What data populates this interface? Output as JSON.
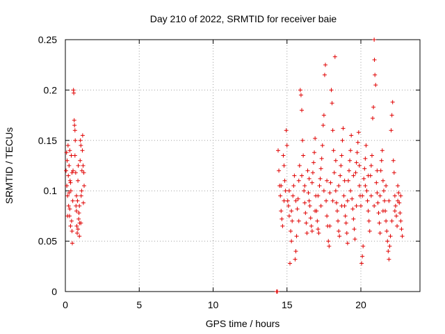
{
  "chart_data": {
    "type": "scatter",
    "title": "Day 210 of 2022, SRMTID for receiver baie",
    "xlabel": "GPS time / hours",
    "ylabel": "SRMTID / TECUs",
    "xlim": [
      0,
      24
    ],
    "ylim": [
      0,
      0.25
    ],
    "x_ticks": [
      0,
      5,
      10,
      15,
      20
    ],
    "x_tick_labels": [
      "0",
      "5",
      "10",
      "15",
      "20"
    ],
    "y_ticks": [
      0,
      0.05,
      0.1,
      0.15,
      0.2,
      0.25
    ],
    "y_tick_labels": [
      "0",
      "0.05",
      "0.1",
      "0.15",
      "0.2",
      "0.25"
    ],
    "grid": true,
    "marker": "plus",
    "color": "#e00000",
    "series": [
      {
        "name": "SRMTID",
        "points": [
          [
            0.05,
            0.12
          ],
          [
            0.1,
            0.105
          ],
          [
            0.12,
            0.13
          ],
          [
            0.15,
            0.095
          ],
          [
            0.18,
            0.145
          ],
          [
            0.2,
            0.115
          ],
          [
            0.22,
            0.085
          ],
          [
            0.25,
            0.125
          ],
          [
            0.28,
            0.075
          ],
          [
            0.3,
            0.14
          ],
          [
            0.32,
            0.11
          ],
          [
            0.35,
            0.065
          ],
          [
            0.37,
            0.1
          ],
          [
            0.4,
            0.135
          ],
          [
            0.42,
            0.07
          ],
          [
            0.45,
            0.06
          ],
          [
            0.47,
            0.048
          ],
          [
            0.5,
            0.09
          ],
          [
            0.52,
            0.12
          ],
          [
            0.55,
            0.2
          ],
          [
            0.57,
            0.197
          ],
          [
            0.6,
            0.17
          ],
          [
            0.62,
            0.165
          ],
          [
            0.65,
            0.16
          ],
          [
            0.67,
            0.15
          ],
          [
            0.7,
            0.118
          ],
          [
            0.72,
            0.085
          ],
          [
            0.75,
            0.08
          ],
          [
            0.77,
            0.065
          ],
          [
            0.8,
            0.058
          ],
          [
            0.82,
            0.09
          ],
          [
            0.85,
            0.11
          ],
          [
            0.87,
            0.125
          ],
          [
            0.9,
            0.072
          ],
          [
            0.92,
            0.078
          ],
          [
            0.95,
            0.085
          ],
          [
            0.97,
            0.068
          ],
          [
            1.0,
            0.13
          ],
          [
            1.02,
            0.15
          ],
          [
            1.05,
            0.145
          ],
          [
            1.07,
            0.095
          ],
          [
            1.1,
            0.1
          ],
          [
            1.12,
            0.12
          ],
          [
            1.15,
            0.14
          ],
          [
            1.17,
            0.155
          ],
          [
            1.2,
            0.125
          ],
          [
            1.22,
            0.088
          ],
          [
            1.25,
            0.118
          ],
          [
            1.27,
            0.105
          ],
          [
            0.15,
            0.075
          ],
          [
            0.25,
            0.098
          ],
          [
            0.35,
            0.108
          ],
          [
            0.45,
            0.118
          ],
          [
            0.65,
            0.135
          ],
          [
            0.75,
            0.095
          ],
          [
            0.85,
            0.062
          ],
          [
            0.95,
            0.055
          ],
          [
            1.05,
            0.068
          ],
          [
            0.08,
            0.138
          ],
          [
            0.3,
            0.082
          ],
          [
            14.3,
            0.0
          ],
          [
            14.35,
            0.0
          ],
          [
            14.4,
            0.14
          ],
          [
            14.45,
            0.12
          ],
          [
            14.5,
            0.105
          ],
          [
            14.55,
            0.095
          ],
          [
            14.6,
            0.08
          ],
          [
            14.65,
            0.072
          ],
          [
            14.7,
            0.065
          ],
          [
            14.75,
            0.135
          ],
          [
            14.8,
            0.125
          ],
          [
            14.85,
            0.11
          ],
          [
            14.9,
            0.1
          ],
          [
            14.95,
            0.16
          ],
          [
            15.0,
            0.145
          ],
          [
            15.05,
            0.09
          ],
          [
            15.1,
            0.085
          ],
          [
            15.15,
            0.075
          ],
          [
            15.2,
            0.028
          ],
          [
            15.25,
            0.06
          ],
          [
            15.3,
            0.05
          ],
          [
            15.35,
            0.07
          ],
          [
            15.4,
            0.095
          ],
          [
            15.45,
            0.105
          ],
          [
            15.5,
            0.115
          ],
          [
            15.55,
            0.032
          ],
          [
            15.6,
            0.04
          ],
          [
            15.65,
            0.055
          ],
          [
            15.7,
            0.082
          ],
          [
            15.75,
            0.092
          ],
          [
            15.8,
            0.11
          ],
          [
            15.85,
            0.125
          ],
          [
            15.9,
            0.2
          ],
          [
            15.95,
            0.195
          ],
          [
            16.0,
            0.18
          ],
          [
            16.05,
            0.15
          ],
          [
            16.1,
            0.135
          ],
          [
            16.15,
            0.1
          ],
          [
            16.2,
            0.088
          ],
          [
            16.25,
            0.078
          ],
          [
            16.3,
            0.068
          ],
          [
            16.35,
            0.058
          ],
          [
            16.4,
            0.12
          ],
          [
            16.45,
            0.098
          ],
          [
            16.5,
            0.09
          ],
          [
            16.55,
            0.085
          ],
          [
            16.6,
            0.073
          ],
          [
            16.65,
            0.065
          ],
          [
            16.7,
            0.108
          ],
          [
            16.75,
            0.118
          ],
          [
            16.8,
            0.128
          ],
          [
            16.85,
            0.138
          ],
          [
            16.9,
            0.152
          ],
          [
            16.95,
            0.095
          ],
          [
            17.0,
            0.08
          ],
          [
            17.05,
            0.07
          ],
          [
            17.1,
            0.062
          ],
          [
            17.15,
            0.058
          ],
          [
            17.2,
            0.105
          ],
          [
            17.25,
            0.112
          ],
          [
            17.3,
            0.122
          ],
          [
            17.35,
            0.132
          ],
          [
            17.4,
            0.145
          ],
          [
            17.45,
            0.165
          ],
          [
            17.5,
            0.175
          ],
          [
            17.55,
            0.215
          ],
          [
            17.6,
            0.225
          ],
          [
            17.65,
            0.09
          ],
          [
            17.7,
            0.075
          ],
          [
            17.75,
            0.065
          ],
          [
            17.8,
            0.05
          ],
          [
            17.85,
            0.045
          ],
          [
            17.9,
            0.098
          ],
          [
            17.95,
            0.108
          ],
          [
            18.0,
            0.2
          ],
          [
            18.05,
            0.187
          ],
          [
            18.1,
            0.16
          ],
          [
            18.15,
            0.14
          ],
          [
            18.2,
            0.118
          ],
          [
            18.25,
            0.233
          ],
          [
            18.3,
            0.1
          ],
          [
            18.35,
            0.088
          ],
          [
            18.4,
            0.08
          ],
          [
            18.45,
            0.07
          ],
          [
            18.5,
            0.06
          ],
          [
            18.55,
            0.055
          ],
          [
            18.6,
            0.115
          ],
          [
            18.65,
            0.125
          ],
          [
            18.7,
            0.135
          ],
          [
            18.75,
            0.15
          ],
          [
            18.8,
            0.162
          ],
          [
            18.85,
            0.095
          ],
          [
            18.9,
            0.085
          ],
          [
            18.95,
            0.075
          ],
          [
            19.0,
            0.068
          ],
          [
            19.05,
            0.058
          ],
          [
            19.1,
            0.048
          ],
          [
            19.15,
            0.11
          ],
          [
            19.2,
            0.12
          ],
          [
            19.25,
            0.13
          ],
          [
            19.3,
            0.14
          ],
          [
            19.35,
            0.155
          ],
          [
            19.4,
            0.092
          ],
          [
            19.45,
            0.082
          ],
          [
            19.5,
            0.072
          ],
          [
            19.55,
            0.062
          ],
          [
            19.6,
            0.052
          ],
          [
            19.65,
            0.118
          ],
          [
            19.7,
            0.128
          ],
          [
            19.75,
            0.138
          ],
          [
            19.8,
            0.148
          ],
          [
            19.85,
            0.158
          ],
          [
            19.9,
            0.105
          ],
          [
            19.95,
            0.095
          ],
          [
            20.0,
            0.085
          ],
          [
            20.05,
            0.028
          ],
          [
            20.1,
            0.035
          ],
          [
            20.15,
            0.045
          ],
          [
            20.2,
            0.112
          ],
          [
            20.25,
            0.122
          ],
          [
            20.3,
            0.132
          ],
          [
            20.35,
            0.145
          ],
          [
            20.4,
            0.1
          ],
          [
            20.45,
            0.09
          ],
          [
            20.5,
            0.08
          ],
          [
            20.55,
            0.07
          ],
          [
            20.6,
            0.06
          ],
          [
            20.65,
            0.115
          ],
          [
            20.7,
            0.125
          ],
          [
            20.75,
            0.135
          ],
          [
            20.8,
            0.172
          ],
          [
            20.85,
            0.183
          ],
          [
            20.9,
            0.25
          ],
          [
            20.92,
            0.23
          ],
          [
            20.95,
            0.215
          ],
          [
            21.0,
            0.205
          ],
          [
            21.05,
            0.108
          ],
          [
            21.1,
            0.098
          ],
          [
            21.15,
            0.088
          ],
          [
            21.2,
            0.078
          ],
          [
            21.25,
            0.068
          ],
          [
            21.3,
            0.058
          ],
          [
            21.35,
            0.12
          ],
          [
            21.4,
            0.13
          ],
          [
            21.45,
            0.14
          ],
          [
            21.5,
            0.11
          ],
          [
            21.55,
            0.1
          ],
          [
            21.6,
            0.09
          ],
          [
            21.65,
            0.08
          ],
          [
            21.7,
            0.07
          ],
          [
            21.75,
            0.06
          ],
          [
            21.8,
            0.05
          ],
          [
            21.85,
            0.04
          ],
          [
            21.9,
            0.032
          ],
          [
            21.95,
            0.045
          ],
          [
            22.0,
            0.055
          ],
          [
            22.05,
            0.16
          ],
          [
            22.1,
            0.175
          ],
          [
            22.15,
            0.188
          ],
          [
            22.2,
            0.13
          ],
          [
            22.25,
            0.118
          ],
          [
            22.3,
            0.095
          ],
          [
            22.35,
            0.085
          ],
          [
            22.4,
            0.075
          ],
          [
            22.45,
            0.065
          ],
          [
            22.5,
            0.105
          ],
          [
            22.55,
            0.098
          ],
          [
            22.6,
            0.088
          ],
          [
            22.65,
            0.078
          ],
          [
            22.7,
            0.07
          ],
          [
            22.75,
            0.062
          ],
          [
            22.8,
            0.055
          ],
          [
            15.15,
            0.1
          ],
          [
            15.3,
            0.08
          ],
          [
            15.6,
            0.09
          ],
          [
            15.8,
            0.07
          ],
          [
            16.0,
            0.115
          ],
          [
            16.2,
            0.105
          ],
          [
            16.5,
            0.112
          ],
          [
            16.7,
            0.06
          ],
          [
            16.9,
            0.08
          ],
          [
            17.1,
            0.095
          ],
          [
            17.3,
            0.085
          ],
          [
            17.5,
            0.1
          ],
          [
            17.7,
            0.11
          ],
          [
            17.9,
            0.065
          ],
          [
            18.1,
            0.09
          ],
          [
            18.3,
            0.13
          ],
          [
            18.5,
            0.105
          ],
          [
            18.7,
            0.085
          ],
          [
            18.9,
            0.11
          ],
          [
            19.1,
            0.09
          ],
          [
            19.3,
            0.1
          ],
          [
            19.5,
            0.115
          ],
          [
            19.7,
            0.085
          ],
          [
            19.9,
            0.125
          ],
          [
            20.1,
            0.095
          ],
          [
            20.3,
            0.105
          ],
          [
            20.5,
            0.115
          ],
          [
            20.7,
            0.095
          ],
          [
            20.9,
            0.085
          ],
          [
            21.1,
            0.12
          ],
          [
            21.3,
            0.095
          ],
          [
            21.5,
            0.08
          ],
          [
            21.7,
            0.105
          ],
          [
            21.9,
            0.09
          ],
          [
            22.1,
            0.07
          ],
          [
            22.3,
            0.08
          ],
          [
            22.5,
            0.09
          ],
          [
            22.7,
            0.095
          ],
          [
            14.6,
            0.105
          ],
          [
            14.8,
            0.09
          ]
        ]
      }
    ]
  }
}
